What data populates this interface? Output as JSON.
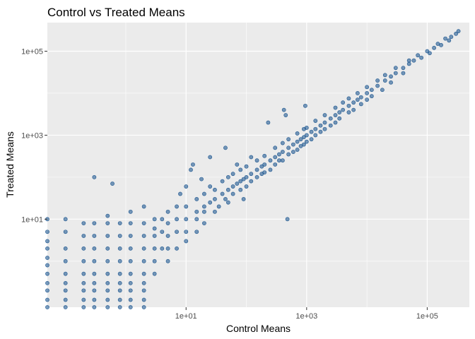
{
  "chart_data": {
    "type": "scatter",
    "title": "Control vs Treated Means",
    "xlabel": "Control Means",
    "ylabel": "Treated Means",
    "x_scale": "log10",
    "y_scale": "log10",
    "xlim": [
      0.05,
      500000
    ],
    "ylim": [
      0.08,
      480000
    ],
    "x_ticks": [
      {
        "value": 10,
        "label": "1e+01"
      },
      {
        "value": 1000,
        "label": "1e+03"
      },
      {
        "value": 100000,
        "label": "1e+05"
      }
    ],
    "y_ticks": [
      {
        "value": 10,
        "label": "1e+01"
      },
      {
        "value": 1000,
        "label": "1e+03"
      },
      {
        "value": 100000,
        "label": "1e+05"
      }
    ],
    "grid": true,
    "panel_background": "#ebebeb",
    "grid_color": "#ffffff",
    "point_color": "#0f4c8a",
    "series": [
      {
        "points": [
          [
            0.05,
            0.08
          ],
          [
            0.05,
            0.12
          ],
          [
            0.05,
            0.2
          ],
          [
            0.05,
            0.3
          ],
          [
            0.05,
            0.5
          ],
          [
            0.05,
            0.8
          ],
          [
            0.05,
            1.2
          ],
          [
            0.05,
            2
          ],
          [
            0.05,
            3
          ],
          [
            0.05,
            5
          ],
          [
            0.05,
            10
          ],
          [
            0.1,
            0.08
          ],
          [
            0.1,
            0.12
          ],
          [
            0.1,
            0.2
          ],
          [
            0.1,
            0.3
          ],
          [
            0.1,
            0.5
          ],
          [
            0.1,
            1
          ],
          [
            0.1,
            2
          ],
          [
            0.1,
            5
          ],
          [
            0.1,
            10
          ],
          [
            0.2,
            0.08
          ],
          [
            0.2,
            0.12
          ],
          [
            0.2,
            0.2
          ],
          [
            0.2,
            0.3
          ],
          [
            0.2,
            0.5
          ],
          [
            0.2,
            1
          ],
          [
            0.2,
            2
          ],
          [
            0.2,
            4
          ],
          [
            0.2,
            8
          ],
          [
            0.3,
            0.08
          ],
          [
            0.3,
            0.12
          ],
          [
            0.3,
            0.2
          ],
          [
            0.3,
            0.3
          ],
          [
            0.3,
            0.5
          ],
          [
            0.3,
            1
          ],
          [
            0.3,
            2
          ],
          [
            0.3,
            4
          ],
          [
            0.3,
            8
          ],
          [
            0.3,
            100
          ],
          [
            0.5,
            0.08
          ],
          [
            0.5,
            0.12
          ],
          [
            0.5,
            0.2
          ],
          [
            0.5,
            0.3
          ],
          [
            0.5,
            0.5
          ],
          [
            0.5,
            1
          ],
          [
            0.5,
            2
          ],
          [
            0.5,
            4
          ],
          [
            0.5,
            8
          ],
          [
            0.5,
            12
          ],
          [
            0.6,
            70
          ],
          [
            0.8,
            0.08
          ],
          [
            0.8,
            0.12
          ],
          [
            0.8,
            0.2
          ],
          [
            0.8,
            0.3
          ],
          [
            0.8,
            0.5
          ],
          [
            0.8,
            1
          ],
          [
            0.8,
            2
          ],
          [
            0.8,
            4
          ],
          [
            0.8,
            8
          ],
          [
            1.2,
            0.08
          ],
          [
            1.2,
            0.12
          ],
          [
            1.2,
            0.2
          ],
          [
            1.2,
            0.3
          ],
          [
            1.2,
            0.5
          ],
          [
            1.2,
            1
          ],
          [
            1.2,
            2
          ],
          [
            1.2,
            4
          ],
          [
            1.2,
            8
          ],
          [
            1.2,
            15
          ],
          [
            2,
            0.08
          ],
          [
            2,
            0.12
          ],
          [
            2,
            0.2
          ],
          [
            2,
            0.3
          ],
          [
            2,
            0.5
          ],
          [
            2,
            1
          ],
          [
            2,
            2
          ],
          [
            2,
            4
          ],
          [
            2,
            8
          ],
          [
            2,
            20
          ],
          [
            3,
            0.5
          ],
          [
            3,
            1
          ],
          [
            3,
            2
          ],
          [
            3,
            4
          ],
          [
            3,
            6
          ],
          [
            3,
            10
          ],
          [
            4,
            2
          ],
          [
            4,
            5
          ],
          [
            4,
            10
          ],
          [
            5,
            1
          ],
          [
            5,
            2
          ],
          [
            5,
            4
          ],
          [
            5,
            8
          ],
          [
            5,
            15
          ],
          [
            7,
            2
          ],
          [
            7,
            5
          ],
          [
            7,
            10
          ],
          [
            7,
            20
          ],
          [
            8,
            40
          ],
          [
            10,
            3
          ],
          [
            10,
            5
          ],
          [
            10,
            10
          ],
          [
            10,
            20
          ],
          [
            10,
            60
          ],
          [
            12,
            150
          ],
          [
            13,
            200
          ],
          [
            15,
            5
          ],
          [
            15,
            10
          ],
          [
            15,
            15
          ],
          [
            15,
            30
          ],
          [
            18,
            90
          ],
          [
            20,
            8
          ],
          [
            20,
            15
          ],
          [
            20,
            20
          ],
          [
            20,
            40
          ],
          [
            25,
            25
          ],
          [
            25,
            60
          ],
          [
            25,
            300
          ],
          [
            30,
            15
          ],
          [
            30,
            30
          ],
          [
            30,
            50
          ],
          [
            35,
            20
          ],
          [
            40,
            40
          ],
          [
            40,
            80
          ],
          [
            45,
            30
          ],
          [
            45,
            500
          ],
          [
            50,
            25
          ],
          [
            50,
            50
          ],
          [
            50,
            100
          ],
          [
            60,
            40
          ],
          [
            60,
            60
          ],
          [
            60,
            120
          ],
          [
            70,
            70
          ],
          [
            70,
            200
          ],
          [
            80,
            50
          ],
          [
            80,
            80
          ],
          [
            80,
            150
          ],
          [
            90,
            90
          ],
          [
            90,
            30
          ],
          [
            100,
            60
          ],
          [
            100,
            100
          ],
          [
            100,
            180
          ],
          [
            120,
            120
          ],
          [
            120,
            80
          ],
          [
            120,
            300
          ],
          [
            150,
            100
          ],
          [
            150,
            150
          ],
          [
            150,
            250
          ],
          [
            180,
            180
          ],
          [
            180,
            120
          ],
          [
            200,
            130
          ],
          [
            200,
            200
          ],
          [
            200,
            320
          ],
          [
            230,
            2000
          ],
          [
            250,
            250
          ],
          [
            250,
            150
          ],
          [
            300,
            200
          ],
          [
            300,
            300
          ],
          [
            300,
            500
          ],
          [
            350,
            350
          ],
          [
            350,
            250
          ],
          [
            400,
            250
          ],
          [
            400,
            400
          ],
          [
            400,
            650
          ],
          [
            420,
            4000
          ],
          [
            450,
            3000
          ],
          [
            480,
            10
          ],
          [
            500,
            350
          ],
          [
            500,
            500
          ],
          [
            500,
            800
          ],
          [
            600,
            600
          ],
          [
            600,
            400
          ],
          [
            700,
            450
          ],
          [
            700,
            700
          ],
          [
            700,
            1100
          ],
          [
            800,
            800
          ],
          [
            800,
            550
          ],
          [
            900,
            600
          ],
          [
            900,
            900
          ],
          [
            900,
            1400
          ],
          [
            950,
            5000
          ],
          [
            1000,
            700
          ],
          [
            1000,
            1000
          ],
          [
            1000,
            1500
          ],
          [
            1200,
            1200
          ],
          [
            1200,
            800
          ],
          [
            1400,
            1000
          ],
          [
            1400,
            1400
          ],
          [
            1400,
            2200
          ],
          [
            1700,
            1700
          ],
          [
            1700,
            1200
          ],
          [
            2000,
            1400
          ],
          [
            2000,
            2000
          ],
          [
            2000,
            3000
          ],
          [
            2500,
            2500
          ],
          [
            2500,
            1700
          ],
          [
            3000,
            2000
          ],
          [
            3000,
            3000
          ],
          [
            3000,
            4500
          ],
          [
            3500,
            3500
          ],
          [
            3500,
            2500
          ],
          [
            4000,
            4000
          ],
          [
            4000,
            6000
          ],
          [
            5000,
            3500
          ],
          [
            5000,
            5000
          ],
          [
            5000,
            7500
          ],
          [
            6000,
            6000
          ],
          [
            6000,
            4000
          ],
          [
            7000,
            7000
          ],
          [
            7000,
            10000
          ],
          [
            8000,
            5500
          ],
          [
            8000,
            8000
          ],
          [
            10000,
            7000
          ],
          [
            10000,
            10000
          ],
          [
            10000,
            14000
          ],
          [
            12000,
            12000
          ],
          [
            12000,
            8500
          ],
          [
            15000,
            15000
          ],
          [
            15000,
            20000
          ],
          [
            18000,
            12000
          ],
          [
            20000,
            20000
          ],
          [
            20000,
            27000
          ],
          [
            25000,
            25000
          ],
          [
            25000,
            18000
          ],
          [
            30000,
            30000
          ],
          [
            30000,
            40000
          ],
          [
            40000,
            40000
          ],
          [
            40000,
            30000
          ],
          [
            50000,
            50000
          ],
          [
            50000,
            60000
          ],
          [
            60000,
            60000
          ],
          [
            70000,
            80000
          ],
          [
            80000,
            70000
          ],
          [
            100000,
            100000
          ],
          [
            110000,
            90000
          ],
          [
            130000,
            120000
          ],
          [
            150000,
            150000
          ],
          [
            170000,
            140000
          ],
          [
            200000,
            200000
          ],
          [
            230000,
            180000
          ],
          [
            250000,
            220000
          ],
          [
            300000,
            260000
          ],
          [
            330000,
            300000
          ]
        ]
      }
    ]
  }
}
